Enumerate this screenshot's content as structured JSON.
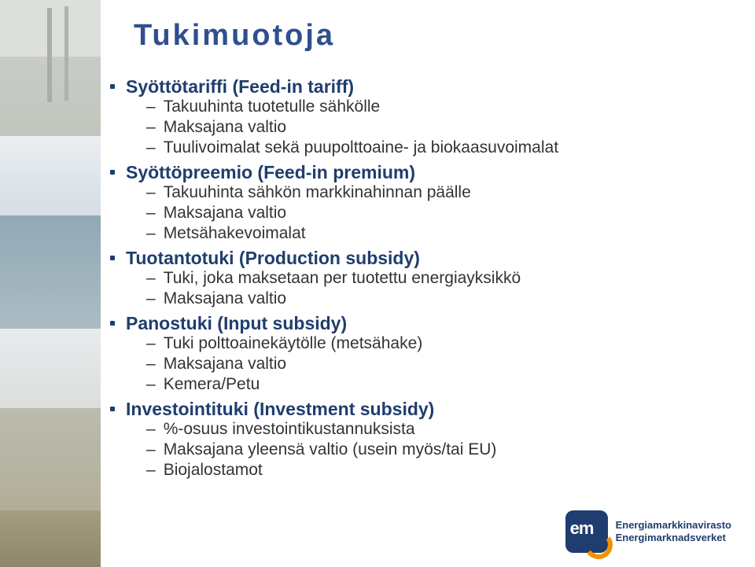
{
  "title": "Tukimuotoja",
  "title_fontsize": 38,
  "title_color": "#2f4f8f",
  "lvl1_fontsize": 23,
  "lvl1_color": "#1f3d6e",
  "lvl2_fontsize": 21,
  "lvl2_color": "#333333",
  "items": [
    {
      "label": "Syöttötariffi (Feed-in tariff)",
      "sub": [
        "Takuuhinta tuotetulle sähkölle",
        "Maksajana valtio",
        "Tuulivoimalat sekä puupolttoaine- ja biokaasuvoimalat"
      ]
    },
    {
      "label": "Syöttöpreemio (Feed-in premium)",
      "sub": [
        "Takuuhinta sähkön markkinahinnan päälle",
        "Maksajana valtio",
        "Metsähakevoimalat"
      ]
    },
    {
      "label": "Tuotantotuki (Production subsidy)",
      "sub": [
        "Tuki, joka maksetaan per tuotettu energiayksikkö",
        "Maksajana valtio"
      ]
    },
    {
      "label": "Panostuki (Input subsidy)",
      "sub": [
        "Tuki polttoainekäytölle (metsähake)",
        "Maksajana valtio",
        "Kemera/Petu"
      ]
    },
    {
      "label": "Investointituki (Investment subsidy)",
      "sub": [
        "%-osuus investointikustannuksista",
        "Maksajana yleensä valtio (usein myös/tai EU)",
        "Biojalostamot"
      ]
    }
  ],
  "logo": {
    "mark_bg": "#1f3d6e",
    "accent": "#f29200",
    "initials": "em",
    "line1": "Energiamarkkinavirasto",
    "line2": "Energimarknadsverket"
  }
}
